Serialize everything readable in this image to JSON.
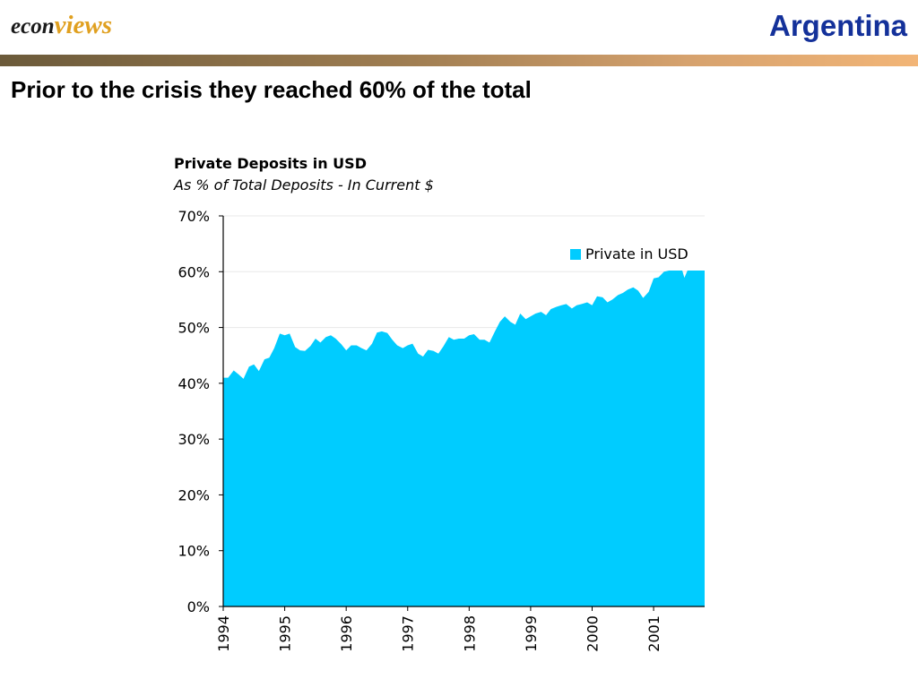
{
  "header": {
    "logo_part1": "econ",
    "logo_part2": "views",
    "country": "Argentina"
  },
  "headline": "Prior to the crisis they reached 60% of the total",
  "colors": {
    "series": "#00ccff",
    "country": "#14319a",
    "logo_accent": "#e0a020"
  },
  "chart_data": {
    "type": "area",
    "title": "Private Deposits in USD",
    "subtitle": "As % of Total Deposits - In Current $",
    "xlabel": "",
    "ylabel": "",
    "ylim": [
      0,
      70
    ],
    "y_ticks": [
      "0%",
      "10%",
      "20%",
      "30%",
      "40%",
      "50%",
      "60%",
      "70%"
    ],
    "x_ticks": [
      "1994",
      "1995",
      "1996",
      "1997",
      "1998",
      "1999",
      "2000",
      "2001"
    ],
    "xlim": [
      1994.0,
      2001.83
    ],
    "grid": "horizontal",
    "legend_position": "top-right",
    "series": [
      {
        "name": "Private in USD",
        "x": [
          1994.0,
          1994.08,
          1994.17,
          1994.25,
          1994.33,
          1994.42,
          1994.5,
          1994.58,
          1994.67,
          1994.75,
          1994.83,
          1994.92,
          1995.0,
          1995.08,
          1995.17,
          1995.25,
          1995.33,
          1995.42,
          1995.5,
          1995.58,
          1995.67,
          1995.75,
          1995.83,
          1995.92,
          1996.0,
          1996.08,
          1996.17,
          1996.25,
          1996.33,
          1996.42,
          1996.5,
          1996.58,
          1996.67,
          1996.75,
          1996.83,
          1996.92,
          1997.0,
          1997.08,
          1997.17,
          1997.25,
          1997.33,
          1997.42,
          1997.5,
          1997.58,
          1997.67,
          1997.75,
          1997.83,
          1997.92,
          1998.0,
          1998.08,
          1998.17,
          1998.25,
          1998.33,
          1998.42,
          1998.5,
          1998.58,
          1998.67,
          1998.75,
          1998.83,
          1998.92,
          1999.0,
          1999.08,
          1999.17,
          1999.25,
          1999.33,
          1999.42,
          1999.5,
          1999.58,
          1999.67,
          1999.75,
          1999.83,
          1999.92,
          2000.0,
          2000.08,
          2000.17,
          2000.25,
          2000.33,
          2000.42,
          2000.5,
          2000.58,
          2000.67,
          2000.75,
          2000.83,
          2000.92,
          2001.0,
          2001.08,
          2001.17,
          2001.25,
          2001.33,
          2001.42,
          2001.5,
          2001.58,
          2001.67,
          2001.75,
          2001.83
        ],
        "values": [
          41.0,
          41.0,
          42.3,
          41.6,
          40.8,
          43.0,
          43.4,
          42.2,
          44.3,
          44.6,
          46.3,
          48.9,
          48.6,
          48.9,
          46.5,
          45.9,
          45.8,
          46.7,
          48.0,
          47.3,
          48.3,
          48.6,
          48.0,
          47.0,
          45.9,
          46.8,
          46.8,
          46.3,
          45.9,
          47.1,
          49.1,
          49.3,
          49.0,
          47.8,
          46.8,
          46.3,
          46.8,
          47.1,
          45.3,
          44.8,
          46.0,
          45.8,
          45.3,
          46.6,
          48.3,
          47.8,
          48.0,
          48.0,
          48.6,
          48.8,
          47.8,
          47.8,
          47.3,
          49.3,
          51.0,
          52.0,
          51.0,
          50.5,
          52.5,
          51.5,
          52.0,
          52.5,
          52.8,
          52.2,
          53.3,
          53.7,
          54.0,
          54.2,
          53.4,
          54.0,
          54.2,
          54.5,
          54.0,
          55.6,
          55.4,
          54.5,
          55.0,
          55.8,
          56.2,
          56.8,
          57.2,
          56.6,
          55.3,
          56.4,
          58.8,
          59.0,
          60.0,
          60.2,
          61.5,
          62.0,
          58.9,
          61.0,
          61.5,
          62.0,
          62.8
        ]
      }
    ]
  }
}
